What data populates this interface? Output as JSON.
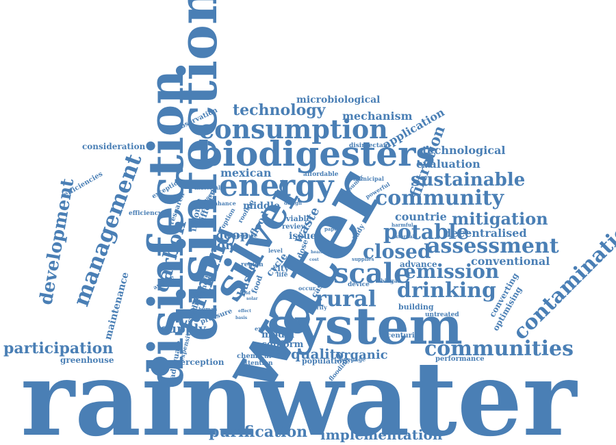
{
  "color": "#4a7fb5",
  "words": [
    "rainwater",
    "water",
    "disinfection",
    "system",
    "silver",
    "biodigesters",
    "energy",
    "consumption",
    "disinfection",
    "scale",
    "assessment",
    "community",
    "management",
    "development",
    "farming",
    "drinking",
    "rural",
    "communities",
    "contamination",
    "potable",
    "emission",
    "mitigation",
    "closed",
    "sustainable",
    "technology",
    "purification",
    "implementation",
    "participation",
    "carbon",
    "filtration",
    "decentralised",
    "conventional",
    "quality",
    "organic",
    "supply",
    "loop",
    "ion",
    "based",
    "waste",
    "countrie",
    "evaluation",
    "technological",
    "application",
    "mechanism",
    "microbiological",
    "mexican",
    "maintenance",
    "greenhouse",
    "consideration",
    "efficiencies",
    "observation",
    "efficiency",
    "flood",
    "middle",
    "issue",
    "case",
    "model",
    "coliform",
    "city",
    "cycle",
    "studies",
    "adequate",
    "expensive",
    "perception",
    "pressure",
    "runoff",
    "analyse",
    "performance",
    "centuries",
    "optimising",
    "converting",
    "building",
    "untreated",
    "advance",
    "device",
    "population",
    "chemical",
    "attention",
    "complex",
    "explore",
    "flooding",
    "income",
    "different",
    "research",
    "exception",
    "material",
    "enhance",
    "general",
    "affordable",
    "municipal",
    "consumer",
    "powerful",
    "disinfectant",
    "design",
    "viable",
    "review",
    "option",
    "rooftop",
    "absence",
    "region",
    "level",
    "paper",
    "study",
    "dose",
    "external",
    "harmful",
    "supplies",
    "biogas",
    "purify",
    "seepage",
    "food",
    "occur",
    "life",
    "human",
    "effect",
    "basis",
    "clean",
    "grid",
    "solar",
    "cost",
    "health"
  ]
}
